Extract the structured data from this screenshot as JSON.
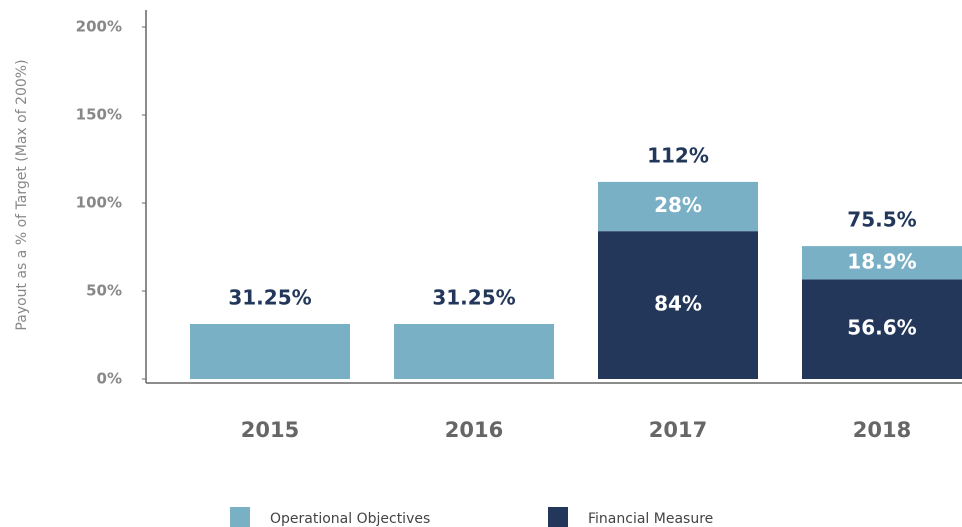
{
  "chart_data": {
    "type": "stacked_bar",
    "y_axis_label": "Payout as a % of Target (Max of 200%)",
    "categories": [
      "2015",
      "2016",
      "2017",
      "2018"
    ],
    "series": [
      {
        "name": "Financial Measure",
        "color": "#22375a",
        "values": [
          0,
          0,
          84,
          56.6
        ],
        "value_labels": [
          null,
          null,
          "84%",
          "56.6%"
        ]
      },
      {
        "name": "Operational Objectives",
        "color": "#7ab0c6",
        "values": [
          31.25,
          31.25,
          28,
          18.9
        ],
        "value_labels": [
          null,
          null,
          "28%",
          "18.9%"
        ]
      }
    ],
    "total_labels": [
      "31.25%",
      "31.25%",
      "112%",
      "75.5%"
    ],
    "ylim": [
      0,
      200
    ],
    "yticks": [
      {
        "value": 0,
        "label": "0%"
      },
      {
        "value": 50,
        "label": "50%"
      },
      {
        "value": 100,
        "label": "100%"
      },
      {
        "value": 150,
        "label": "150%"
      },
      {
        "value": 200,
        "label": "200%"
      }
    ],
    "legend_order": [
      1,
      0
    ]
  }
}
